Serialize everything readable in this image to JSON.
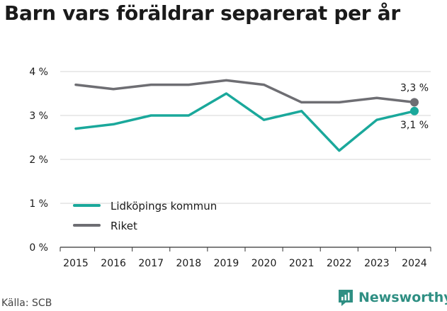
{
  "title": "Barn vars föräldrar separerat per år",
  "source": "Källa: SCB",
  "brand": {
    "name": "Newsworthy",
    "icon": "newsworthy-logo-icon",
    "color": "#2f8f83"
  },
  "chart_data": {
    "type": "line",
    "title": "Barn vars föräldrar separerat per år",
    "x": [
      "2015",
      "2016",
      "2017",
      "2018",
      "2019",
      "2020",
      "2021",
      "2022",
      "2023",
      "2024"
    ],
    "ylim": [
      0,
      4
    ],
    "yticks": [
      0,
      1,
      2,
      3,
      4
    ],
    "ytick_labels": [
      "0 %",
      "1 %",
      "2 %",
      "3 %",
      "4 %"
    ],
    "grid": true,
    "legend": "bottom-left",
    "series": [
      {
        "name": "Lidköpings kommun",
        "color": "#1aa89b",
        "values": [
          2.7,
          2.8,
          3.0,
          3.0,
          3.5,
          2.9,
          3.1,
          2.2,
          2.9,
          3.1
        ],
        "end_label": "3,1 %"
      },
      {
        "name": "Riket",
        "color": "#6e6e73",
        "values": [
          3.7,
          3.6,
          3.7,
          3.7,
          3.8,
          3.7,
          3.3,
          3.3,
          3.4,
          3.3
        ],
        "end_label": "3,3 %"
      }
    ]
  }
}
